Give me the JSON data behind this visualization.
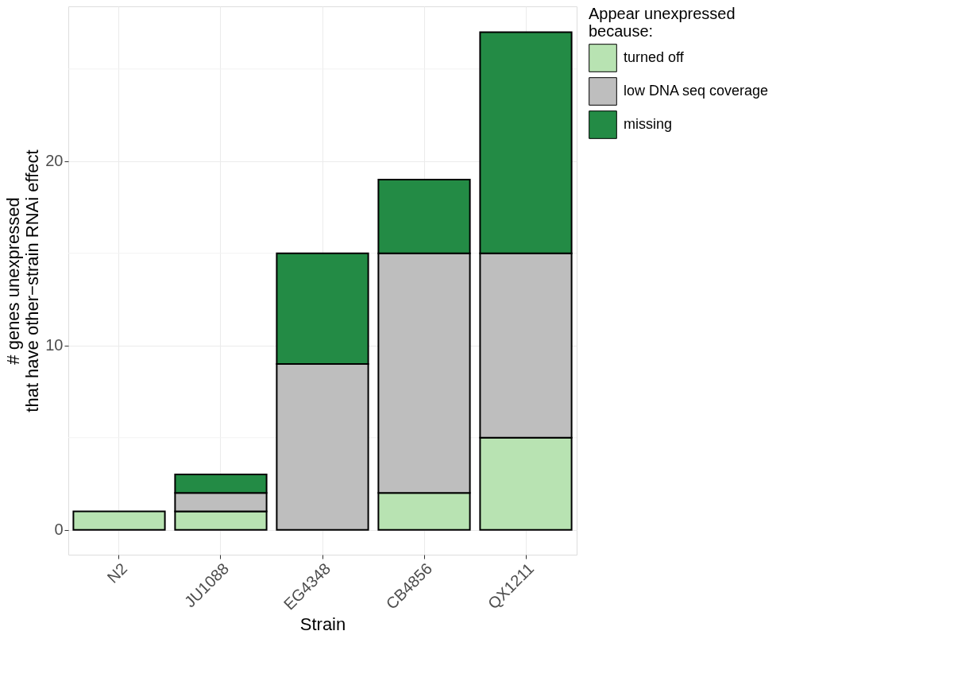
{
  "chart_data": {
    "type": "bar",
    "stacked": true,
    "xlabel": "Strain",
    "ylabel": "# genes unexpressed\nthat have other−strain RNAi effect",
    "legend_title": "Appear unexpressed\nbecause:",
    "legend": "right",
    "grid": true,
    "categories": [
      "N2",
      "JU1088",
      "EG4348",
      "CB4856",
      "QX1211"
    ],
    "series": [
      {
        "name": "turned off",
        "color": "#b8e3b2",
        "values": [
          1,
          1,
          0,
          2,
          5
        ]
      },
      {
        "name": "low DNA seq coverage",
        "color": "#bebebe",
        "values": [
          0,
          1,
          9,
          13,
          10
        ]
      },
      {
        "name": "missing",
        "color": "#238b45",
        "values": [
          0,
          1,
          6,
          4,
          12
        ]
      }
    ],
    "ylim": [
      -1.35,
      28.4
    ],
    "yticks": [
      0,
      {
        "value": 5,
        "label": null
      },
      10,
      {
        "value": 15,
        "label": null
      },
      20,
      {
        "value": 25,
        "label": null
      }
    ]
  }
}
